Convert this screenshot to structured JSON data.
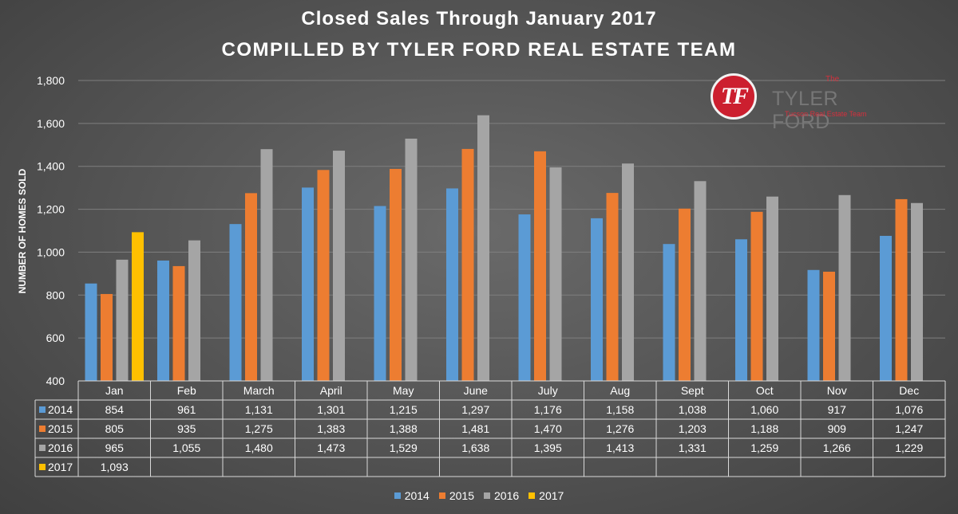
{
  "title_line1": "Closed Sales Through January 2017",
  "title_line2": "COMPILLED BY TYLER FORD REAL ESTATE TEAM",
  "logo": {
    "monogram": "TF",
    "the": "The",
    "name": "TYLER FORD",
    "tagline": "Tucson Real Estate Team"
  },
  "colors": {
    "s2014": "#5b9bd5",
    "s2015": "#ed7d31",
    "s2016": "#a5a5a5",
    "s2017": "#ffc000"
  },
  "chart_data": {
    "type": "bar",
    "title": "Closed Sales Through January 2017",
    "ylabel": "NUMBER OF HOMES SOLD",
    "ylim": [
      400,
      1800
    ],
    "yticks": [
      "400",
      "600",
      "800",
      "1,000",
      "1,200",
      "1,400",
      "1,600",
      "1,800"
    ],
    "grid": true,
    "legend": "bottom",
    "categories": [
      "Jan",
      "Feb",
      "March",
      "April",
      "May",
      "June",
      "July",
      "Aug",
      "Sept",
      "Oct",
      "Nov",
      "Dec"
    ],
    "series": [
      {
        "name": "2014",
        "values": [
          854,
          961,
          1131,
          1301,
          1215,
          1297,
          1176,
          1158,
          1038,
          1060,
          917,
          1076
        ],
        "labels": [
          "854",
          "961",
          "1,131",
          "1,301",
          "1,215",
          "1,297",
          "1,176",
          "1,158",
          "1,038",
          "1,060",
          "917",
          "1,076"
        ]
      },
      {
        "name": "2015",
        "values": [
          805,
          935,
          1275,
          1383,
          1388,
          1481,
          1470,
          1276,
          1203,
          1188,
          909,
          1247
        ],
        "labels": [
          "805",
          "935",
          "1,275",
          "1,383",
          "1,388",
          "1,481",
          "1,470",
          "1,276",
          "1,203",
          "1,188",
          "909",
          "1,247"
        ]
      },
      {
        "name": "2016",
        "values": [
          965,
          1055,
          1480,
          1473,
          1529,
          1638,
          1395,
          1413,
          1331,
          1259,
          1266,
          1229
        ],
        "labels": [
          "965",
          "1,055",
          "1,480",
          "1,473",
          "1,529",
          "1,638",
          "1,395",
          "1,413",
          "1,331",
          "1,259",
          "1,266",
          "1,229"
        ]
      },
      {
        "name": "2017",
        "values": [
          1093,
          null,
          null,
          null,
          null,
          null,
          null,
          null,
          null,
          null,
          null,
          null
        ],
        "labels": [
          "1,093",
          "",
          "",
          "",
          "",
          "",
          "",
          "",
          "",
          "",
          "",
          ""
        ]
      }
    ]
  }
}
